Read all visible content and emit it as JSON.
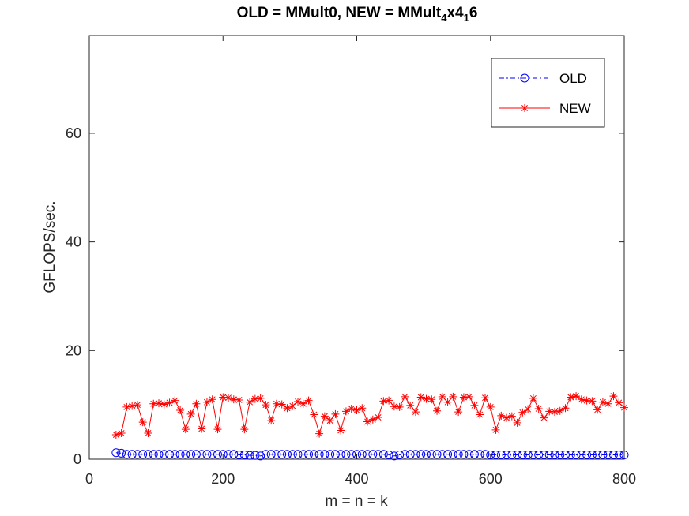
{
  "chart_data": {
    "type": "line",
    "title": {
      "prefix": "OLD = MMult0, NEW = MMult",
      "sub1": "4",
      "mid": "x4",
      "sub2": "1",
      "suffix": "6"
    },
    "xlabel": "m = n = k",
    "ylabel": "GFLOPS/sec.",
    "xlim": [
      0,
      800
    ],
    "ylim": [
      0,
      78
    ],
    "xticks": [
      0,
      200,
      400,
      600,
      800
    ],
    "yticks": [
      0,
      20,
      40,
      60
    ],
    "grid": false,
    "legend_position": "top-right",
    "x": [
      40,
      48,
      56,
      64,
      72,
      80,
      88,
      96,
      104,
      112,
      120,
      128,
      136,
      144,
      152,
      160,
      168,
      176,
      184,
      192,
      200,
      208,
      216,
      224,
      232,
      240,
      248,
      256,
      264,
      272,
      280,
      288,
      296,
      304,
      312,
      320,
      328,
      336,
      344,
      352,
      360,
      368,
      376,
      384,
      392,
      400,
      408,
      416,
      424,
      432,
      440,
      448,
      456,
      464,
      472,
      480,
      488,
      496,
      504,
      512,
      520,
      528,
      536,
      544,
      552,
      560,
      568,
      576,
      584,
      592,
      600,
      608,
      616,
      624,
      632,
      640,
      648,
      656,
      664,
      672,
      680,
      688,
      696,
      704,
      712,
      720,
      728,
      736,
      744,
      752,
      760,
      768,
      776,
      784,
      792,
      800
    ],
    "series": [
      {
        "name": "OLD",
        "color": "#0000ff",
        "marker": "circle",
        "line": "dash-dot",
        "values": [
          1.2,
          1.1,
          0.9,
          0.9,
          0.9,
          0.9,
          0.9,
          0.9,
          0.9,
          0.9,
          0.9,
          0.9,
          0.9,
          0.9,
          0.9,
          0.9,
          0.9,
          0.9,
          0.9,
          0.9,
          0.9,
          0.9,
          0.9,
          0.8,
          0.8,
          0.7,
          0.7,
          0.6,
          0.9,
          0.9,
          0.9,
          0.9,
          0.9,
          0.9,
          0.9,
          0.9,
          0.9,
          0.9,
          0.9,
          0.9,
          0.9,
          0.9,
          0.9,
          0.9,
          0.9,
          0.9,
          0.9,
          0.9,
          0.9,
          0.9,
          0.9,
          0.8,
          0.6,
          0.8,
          0.9,
          0.9,
          0.9,
          0.9,
          0.9,
          0.9,
          0.9,
          0.9,
          0.9,
          0.9,
          0.9,
          0.9,
          0.9,
          0.9,
          0.9,
          0.9,
          0.8,
          0.8,
          0.8,
          0.8,
          0.8,
          0.8,
          0.8,
          0.8,
          0.8,
          0.8,
          0.8,
          0.8,
          0.8,
          0.8,
          0.8,
          0.8,
          0.8,
          0.8,
          0.8,
          0.8,
          0.8,
          0.8,
          0.8,
          0.8,
          0.8,
          0.8
        ]
      },
      {
        "name": "NEW",
        "color": "#ff0000",
        "marker": "star",
        "line": "solid",
        "values": [
          4.5,
          4.8,
          9.6,
          9.8,
          10.0,
          6.8,
          4.8,
          10.2,
          10.3,
          10.1,
          10.4,
          10.8,
          9.0,
          5.5,
          8.3,
          10.2,
          5.6,
          10.5,
          11.0,
          5.5,
          11.4,
          11.3,
          11.0,
          10.9,
          5.5,
          10.5,
          11.1,
          11.2,
          10.0,
          7.1,
          10.2,
          10.1,
          9.4,
          9.8,
          10.6,
          10.2,
          10.8,
          8.2,
          4.7,
          7.9,
          7.1,
          8.3,
          5.3,
          8.8,
          9.3,
          9.0,
          9.4,
          6.9,
          7.3,
          7.7,
          10.7,
          10.8,
          9.7,
          9.6,
          11.5,
          9.9,
          8.7,
          11.4,
          11.1,
          11.0,
          8.9,
          11.5,
          10.5,
          11.5,
          8.7,
          11.4,
          11.5,
          9.9,
          8.2,
          11.3,
          9.6,
          5.4,
          8.0,
          7.6,
          7.9,
          6.7,
          8.6,
          9.2,
          11.2,
          9.3,
          7.6,
          8.8,
          8.7,
          8.9,
          9.4,
          11.4,
          11.6,
          11.0,
          10.8,
          10.7,
          9.1,
          10.5,
          10.2,
          11.6,
          10.4,
          9.5
        ]
      }
    ]
  }
}
